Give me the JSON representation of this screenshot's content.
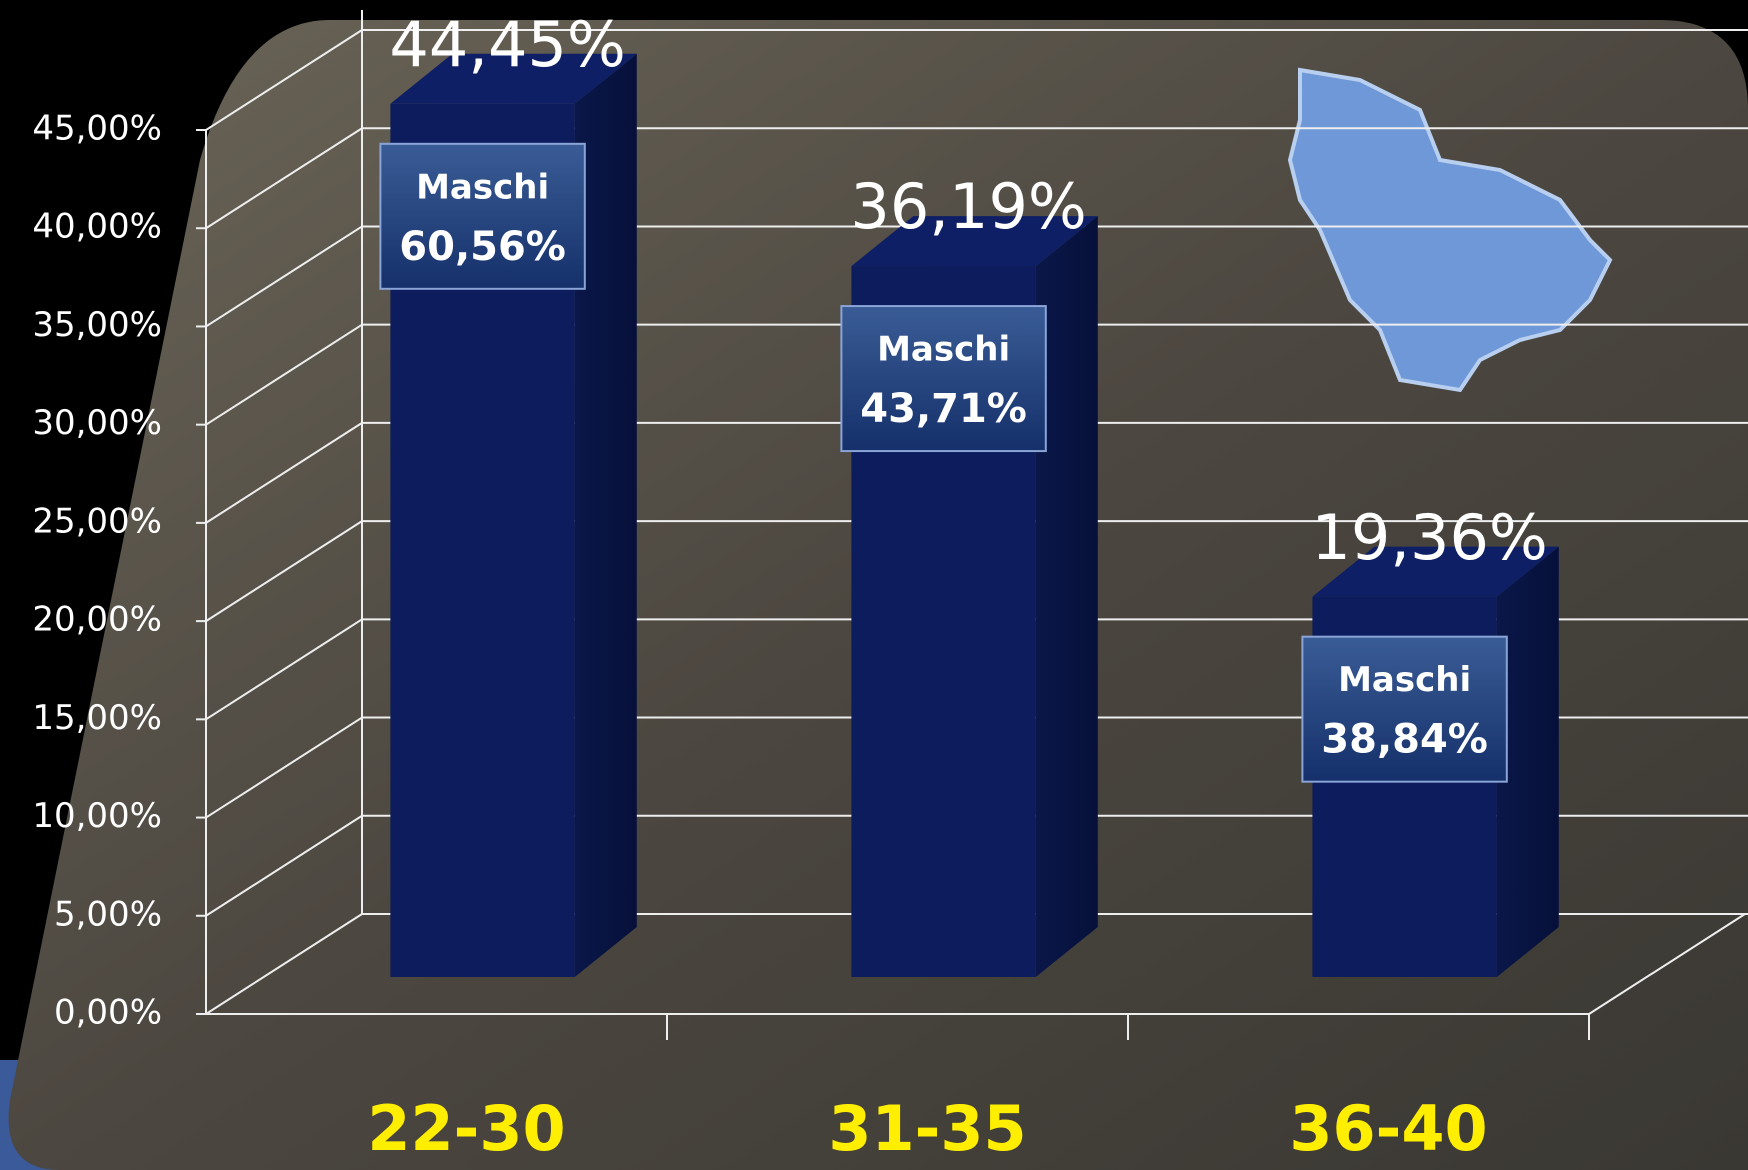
{
  "chart_data": {
    "type": "bar3d",
    "categories": [
      "22-30",
      "31-35",
      "36-40"
    ],
    "values": [
      44.45,
      36.19,
      19.36
    ],
    "value_labels": [
      "44,45%",
      "36,19%",
      "19,36%"
    ],
    "color": "#0c1c5c",
    "ylim": [
      0,
      45
    ],
    "yticks": [
      {
        "value": 0,
        "label": "0,00%"
      },
      {
        "value": 5,
        "label": "5,00%"
      },
      {
        "value": 10,
        "label": "10,00%"
      },
      {
        "value": 15,
        "label": "15,00%"
      },
      {
        "value": 20,
        "label": "20,00%"
      },
      {
        "value": 25,
        "label": "25,00%"
      },
      {
        "value": 30,
        "label": "30,00%"
      },
      {
        "value": 35,
        "label": "35,00%"
      },
      {
        "value": 40,
        "label": "40,00%"
      },
      {
        "value": 45,
        "label": "45,00%"
      }
    ],
    "grid": true,
    "male_share": {
      "label": "Maschi",
      "values": [
        60.56,
        43.71,
        38.84
      ],
      "value_labels": [
        "60,56%",
        "43,71%",
        "38,84%"
      ]
    }
  }
}
